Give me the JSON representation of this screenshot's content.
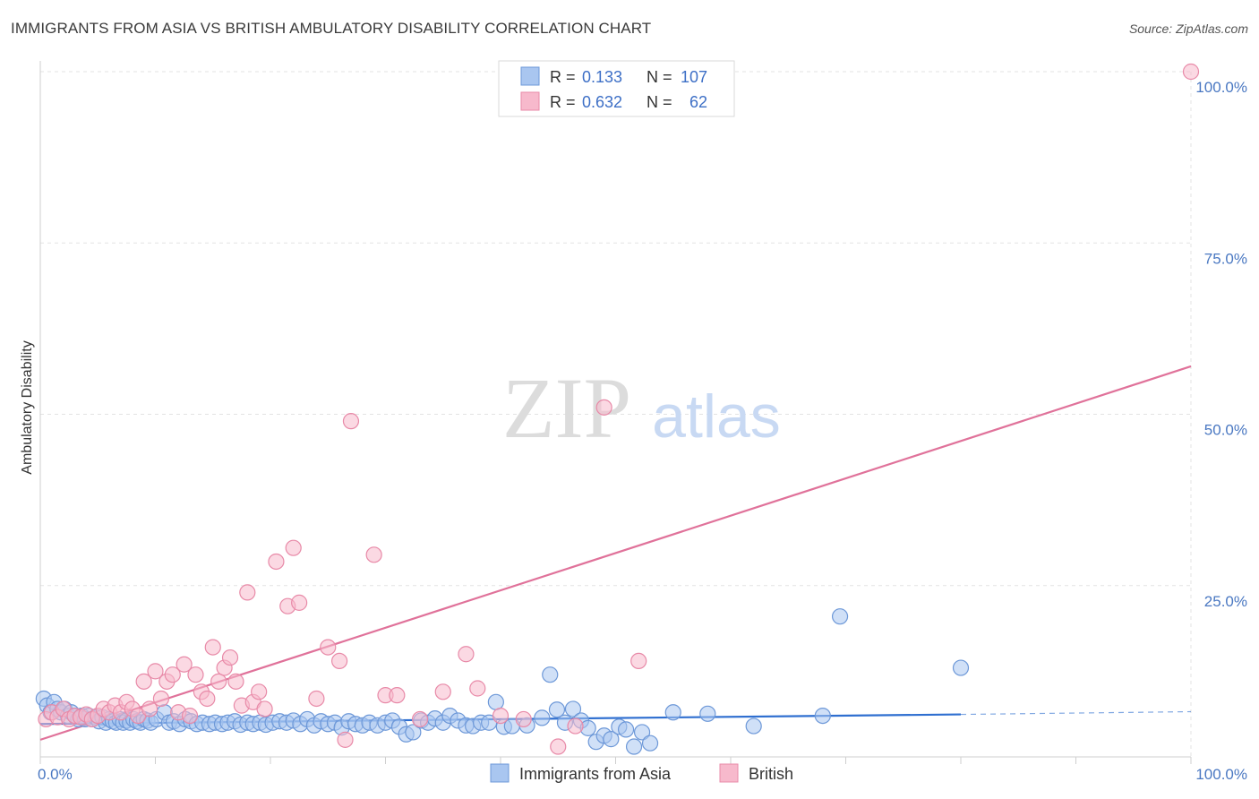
{
  "title": "IMMIGRANTS FROM ASIA VS BRITISH AMBULATORY DISABILITY CORRELATION CHART",
  "source": "Source: ZipAtlas.com",
  "watermark": {
    "zip": "ZIP",
    "atlas": "atlas"
  },
  "legend_box": {
    "rows": [
      {
        "r_label": "R =",
        "r_value": "0.133",
        "n_label": "N =",
        "n_value": "107",
        "color": "#a9c6f0",
        "stroke": "#6d98d8"
      },
      {
        "r_label": "R =",
        "r_value": "0.632",
        "n_label": "N =",
        "n_value": "62",
        "color": "#f7b9cc",
        "stroke": "#e88aa8"
      }
    ]
  },
  "chart_data": {
    "type": "scatter",
    "title": "IMMIGRANTS FROM ASIA VS BRITISH AMBULATORY DISABILITY CORRELATION CHART",
    "xlabel": "",
    "ylabel": "Ambulatory Disability",
    "xlim": [
      0,
      100
    ],
    "ylim": [
      0,
      100
    ],
    "x_tick_labels": [
      "0.0%",
      "100.0%"
    ],
    "y_ticks": [
      25,
      50,
      75,
      100
    ],
    "y_tick_labels": [
      "25.0%",
      "50.0%",
      "75.0%",
      "100.0%"
    ],
    "grid": true,
    "legend_position": "bottom",
    "series": [
      {
        "name": "Immigrants from Asia",
        "color": "#6d98d8",
        "fill": "#a9c6f0",
        "line_color": "#2f6fd0",
        "trend": {
          "x0": 0,
          "y0": 4.8,
          "x1": 80,
          "y1": 6.2,
          "dash_to": 100,
          "dash_y": 6.6
        },
        "points": [
          [
            0.3,
            8.5
          ],
          [
            0.6,
            7.5
          ],
          [
            0.9,
            6.5
          ],
          [
            1.2,
            8.0
          ],
          [
            1.5,
            7.0
          ],
          [
            1.8,
            6.5
          ],
          [
            2.1,
            7.0
          ],
          [
            2.4,
            6.0
          ],
          [
            2.7,
            6.5
          ],
          [
            3.0,
            6.0
          ],
          [
            3.3,
            5.5
          ],
          [
            3.6,
            6.0
          ],
          [
            3.9,
            5.5
          ],
          [
            4.2,
            6.0
          ],
          [
            4.5,
            5.5
          ],
          [
            4.8,
            5.8
          ],
          [
            5.1,
            5.2
          ],
          [
            5.4,
            5.8
          ],
          [
            5.7,
            5.0
          ],
          [
            6.0,
            5.5
          ],
          [
            6.3,
            5.2
          ],
          [
            6.6,
            5.0
          ],
          [
            6.9,
            5.5
          ],
          [
            7.2,
            5.0
          ],
          [
            7.5,
            5.3
          ],
          [
            7.8,
            5.0
          ],
          [
            8.1,
            5.5
          ],
          [
            8.4,
            5.2
          ],
          [
            8.7,
            5.0
          ],
          [
            9.0,
            5.5
          ],
          [
            9.3,
            5.3
          ],
          [
            9.6,
            5.0
          ],
          [
            10.1,
            5.5
          ],
          [
            10.8,
            6.5
          ],
          [
            11.2,
            5.0
          ],
          [
            11.6,
            5.2
          ],
          [
            12.1,
            4.8
          ],
          [
            12.6,
            5.5
          ],
          [
            13.1,
            5.2
          ],
          [
            13.6,
            4.8
          ],
          [
            14.1,
            5.0
          ],
          [
            14.7,
            4.8
          ],
          [
            15.2,
            5.0
          ],
          [
            15.8,
            4.8
          ],
          [
            16.3,
            5.0
          ],
          [
            16.9,
            5.2
          ],
          [
            17.4,
            4.7
          ],
          [
            18.0,
            5.0
          ],
          [
            18.5,
            4.8
          ],
          [
            19.1,
            5.0
          ],
          [
            19.6,
            4.7
          ],
          [
            20.2,
            5.0
          ],
          [
            20.8,
            5.2
          ],
          [
            21.4,
            5.0
          ],
          [
            22.0,
            5.3
          ],
          [
            22.6,
            4.8
          ],
          [
            23.2,
            5.5
          ],
          [
            23.8,
            4.6
          ],
          [
            24.4,
            5.2
          ],
          [
            25.0,
            4.8
          ],
          [
            25.6,
            5.0
          ],
          [
            26.2,
            4.3
          ],
          [
            26.8,
            5.2
          ],
          [
            27.4,
            4.8
          ],
          [
            28.0,
            4.6
          ],
          [
            28.6,
            5.0
          ],
          [
            29.3,
            4.6
          ],
          [
            30.0,
            5.0
          ],
          [
            30.6,
            5.3
          ],
          [
            31.2,
            4.4
          ],
          [
            31.8,
            3.3
          ],
          [
            32.4,
            3.6
          ],
          [
            33.1,
            5.3
          ],
          [
            33.7,
            5.0
          ],
          [
            34.3,
            5.6
          ],
          [
            35.0,
            5.0
          ],
          [
            35.6,
            6.0
          ],
          [
            36.3,
            5.3
          ],
          [
            37.0,
            4.6
          ],
          [
            37.6,
            4.5
          ],
          [
            38.3,
            5.0
          ],
          [
            39.0,
            5.0
          ],
          [
            39.6,
            8.0
          ],
          [
            40.3,
            4.4
          ],
          [
            41.0,
            4.5
          ],
          [
            42.3,
            4.6
          ],
          [
            43.6,
            5.7
          ],
          [
            44.3,
            12.0
          ],
          [
            44.9,
            6.9
          ],
          [
            45.6,
            5.0
          ],
          [
            46.3,
            7.0
          ],
          [
            47.0,
            5.3
          ],
          [
            47.6,
            4.2
          ],
          [
            48.3,
            2.2
          ],
          [
            49.0,
            3.1
          ],
          [
            49.6,
            2.6
          ],
          [
            50.3,
            4.4
          ],
          [
            50.9,
            4.0
          ],
          [
            51.6,
            1.5
          ],
          [
            52.3,
            3.6
          ],
          [
            53.0,
            2.0
          ],
          [
            55.0,
            6.5
          ],
          [
            58.0,
            6.3
          ],
          [
            62.0,
            4.5
          ],
          [
            68.0,
            6.0
          ],
          [
            69.5,
            20.5
          ],
          [
            80.0,
            13.0
          ]
        ]
      },
      {
        "name": "British",
        "color": "#e88aa8",
        "fill": "#f7b9cc",
        "line_color": "#e0729a",
        "trend": {
          "x0": 0,
          "y0": 2.5,
          "x1": 100,
          "y1": 57.0
        },
        "points": [
          [
            0.5,
            5.5
          ],
          [
            1.0,
            6.5
          ],
          [
            1.5,
            5.8
          ],
          [
            2.0,
            7.0
          ],
          [
            2.5,
            5.5
          ],
          [
            3.0,
            6.0
          ],
          [
            3.5,
            5.8
          ],
          [
            4.0,
            6.2
          ],
          [
            4.5,
            5.5
          ],
          [
            5.0,
            6.0
          ],
          [
            5.5,
            7.0
          ],
          [
            6.0,
            6.5
          ],
          [
            6.5,
            7.5
          ],
          [
            7.0,
            6.5
          ],
          [
            7.5,
            8.0
          ],
          [
            8.0,
            7.0
          ],
          [
            8.5,
            6.0
          ],
          [
            9.0,
            11.0
          ],
          [
            9.5,
            7.0
          ],
          [
            10.0,
            12.5
          ],
          [
            10.5,
            8.5
          ],
          [
            11.0,
            11.0
          ],
          [
            11.5,
            12.0
          ],
          [
            12.0,
            6.5
          ],
          [
            12.5,
            13.5
          ],
          [
            13.0,
            6.0
          ],
          [
            13.5,
            12.0
          ],
          [
            14.0,
            9.5
          ],
          [
            14.5,
            8.5
          ],
          [
            15.0,
            16.0
          ],
          [
            15.5,
            11.0
          ],
          [
            16.0,
            13.0
          ],
          [
            16.5,
            14.5
          ],
          [
            17.0,
            11.0
          ],
          [
            17.5,
            7.5
          ],
          [
            18.0,
            24.0
          ],
          [
            18.5,
            8.0
          ],
          [
            19.0,
            9.5
          ],
          [
            19.5,
            7.0
          ],
          [
            20.5,
            28.5
          ],
          [
            21.5,
            22.0
          ],
          [
            22.0,
            30.5
          ],
          [
            22.5,
            22.5
          ],
          [
            24.0,
            8.5
          ],
          [
            25.0,
            16.0
          ],
          [
            26.0,
            14.0
          ],
          [
            26.5,
            2.5
          ],
          [
            27.0,
            49.0
          ],
          [
            29.0,
            29.5
          ],
          [
            30.0,
            9.0
          ],
          [
            31.0,
            9.0
          ],
          [
            33.0,
            5.5
          ],
          [
            35.0,
            9.5
          ],
          [
            37.0,
            15.0
          ],
          [
            38.0,
            10.0
          ],
          [
            40.0,
            6.0
          ],
          [
            42.0,
            5.5
          ],
          [
            45.0,
            1.5
          ],
          [
            46.5,
            4.5
          ],
          [
            49.0,
            51.0
          ],
          [
            52.0,
            14.0
          ],
          [
            100.0,
            100.0
          ]
        ]
      }
    ]
  }
}
